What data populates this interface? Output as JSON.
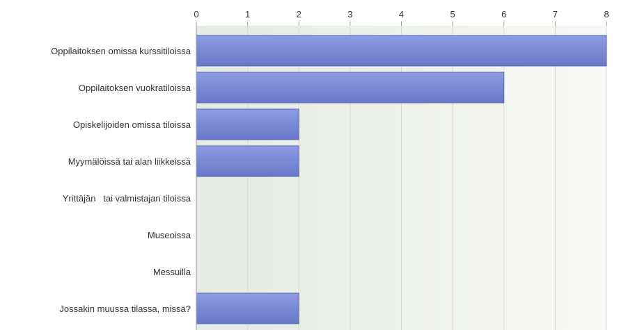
{
  "chart_data": {
    "type": "bar",
    "orientation": "horizontal",
    "categories": [
      "Oppilaitoksen omissa kurssitiloissa",
      "Oppilaitoksen vuokratiloissa",
      "Opiskelijoiden omissa tiloissa",
      "Myymälöissä tai alan liikkeissä",
      "Yrittäjän   tai valmistajan tiloissa",
      "Museoissa",
      "Messuilla",
      "Jossakin muussa tilassa, missä?"
    ],
    "values": [
      8,
      6,
      2,
      2,
      0,
      0,
      0,
      2
    ],
    "xlim": [
      0,
      8
    ],
    "xticks": [
      "0",
      "1",
      "2",
      "3",
      "4",
      "5",
      "6",
      "7",
      "8"
    ],
    "title": "",
    "xlabel": "",
    "ylabel": "",
    "grid": true,
    "legend": "none",
    "colors": {
      "bar_top": "#8e9ce4",
      "bar_bottom": "#6877c8",
      "bar_edge": "#5a68b8",
      "plot_band_left": "#e4ebe2",
      "plot_band_right": "#f7f8f5",
      "grid": "#d6dcd3",
      "axis": "#9a9a9a"
    }
  }
}
